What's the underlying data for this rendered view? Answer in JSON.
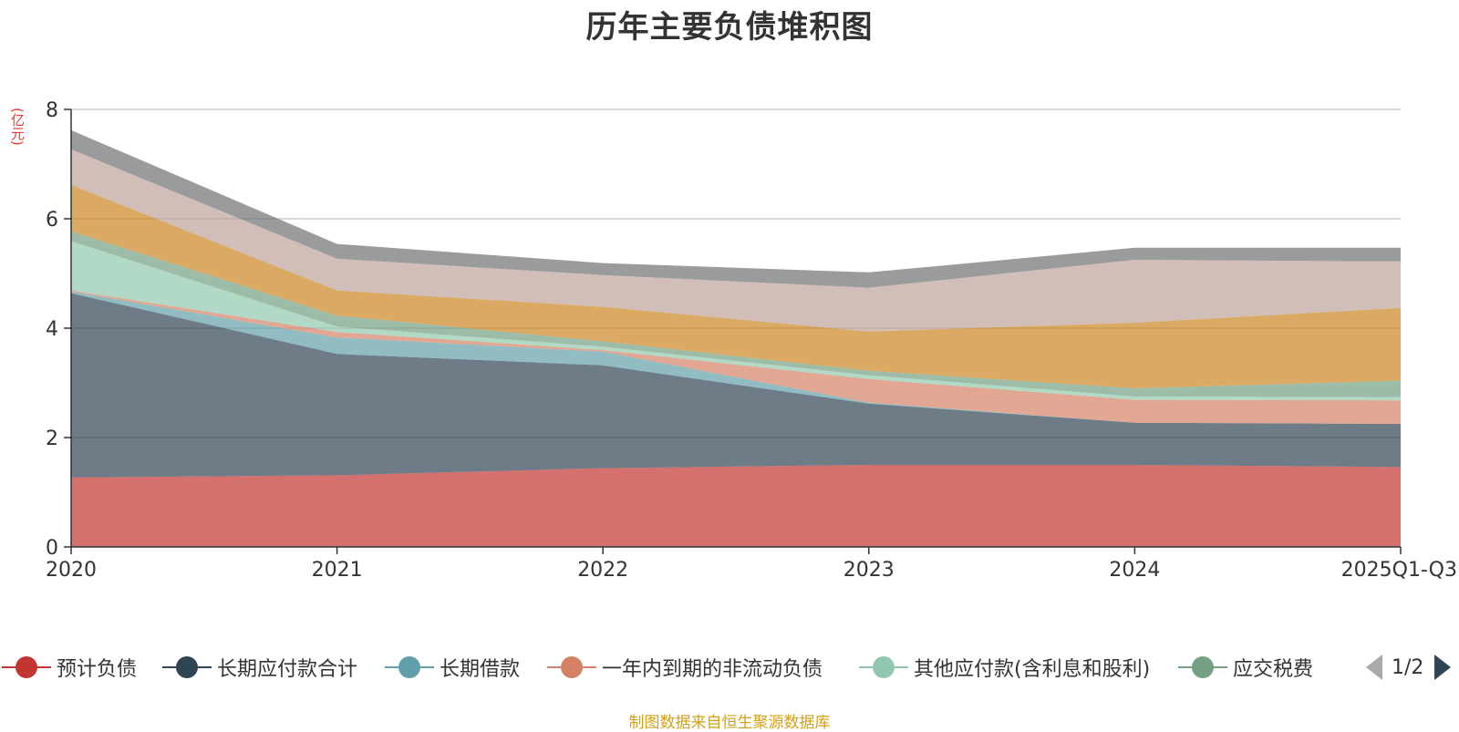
{
  "chart_data": {
    "type": "area",
    "stacked": true,
    "title": "历年主要负债堆积图",
    "ylabel": "(亿元)",
    "ylim": [
      0,
      8
    ],
    "yticks": [
      0,
      2,
      4,
      6,
      8
    ],
    "categories": [
      "2020",
      "2021",
      "2022",
      "2023",
      "2024",
      "2025Q1-Q3"
    ],
    "grid": true,
    "legend_position": "bottom",
    "series": [
      {
        "name": "预计负债",
        "color": "#c23531",
        "values": [
          1.27,
          1.31,
          1.44,
          1.5,
          1.5,
          1.46
        ]
      },
      {
        "name": "长期应付款合计",
        "color": "#2f4554",
        "values": [
          3.37,
          2.22,
          1.88,
          1.12,
          0.77,
          0.79
        ]
      },
      {
        "name": "长期借款",
        "color": "#61a0a8",
        "values": [
          0.03,
          0.3,
          0.25,
          0.02,
          0.0,
          0.0
        ]
      },
      {
        "name": "一年内到期的非流动负债",
        "color": "#d48265",
        "values": [
          0.02,
          0.1,
          0.03,
          0.43,
          0.42,
          0.43
        ]
      },
      {
        "name": "其他应付款(含利息和股利)",
        "color": "#91c7ae",
        "values": [
          0.9,
          0.1,
          0.06,
          0.07,
          0.06,
          0.06
        ]
      },
      {
        "name": "应交税费",
        "color": "#749f83",
        "values": [
          0.18,
          0.2,
          0.1,
          0.08,
          0.15,
          0.3
        ]
      },
      {
        "name": "",
        "color": "#ca8622",
        "values": [
          0.85,
          0.46,
          0.63,
          0.72,
          1.2,
          1.33
        ]
      },
      {
        "name": "",
        "color": "#bda29a",
        "values": [
          0.65,
          0.58,
          0.58,
          0.8,
          1.15,
          0.85
        ]
      },
      {
        "name": "",
        "color": "#6e7074",
        "values": [
          0.35,
          0.27,
          0.22,
          0.28,
          0.22,
          0.25
        ]
      }
    ]
  },
  "legend": {
    "items": [
      {
        "label": "预计负债",
        "color": "#c23531"
      },
      {
        "label": "长期应付款合计",
        "color": "#2f4554"
      },
      {
        "label": "长期借款",
        "color": "#61a0a8"
      },
      {
        "label": "一年内到期的非流动负债",
        "color": "#d48265"
      },
      {
        "label": "其他应付款(含利息和股利)",
        "color": "#91c7ae"
      },
      {
        "label": "应交税费",
        "color": "#749f83"
      }
    ],
    "page_indicator": "1/2"
  },
  "footer": {
    "source_note": "制图数据来自恒生聚源数据库"
  }
}
